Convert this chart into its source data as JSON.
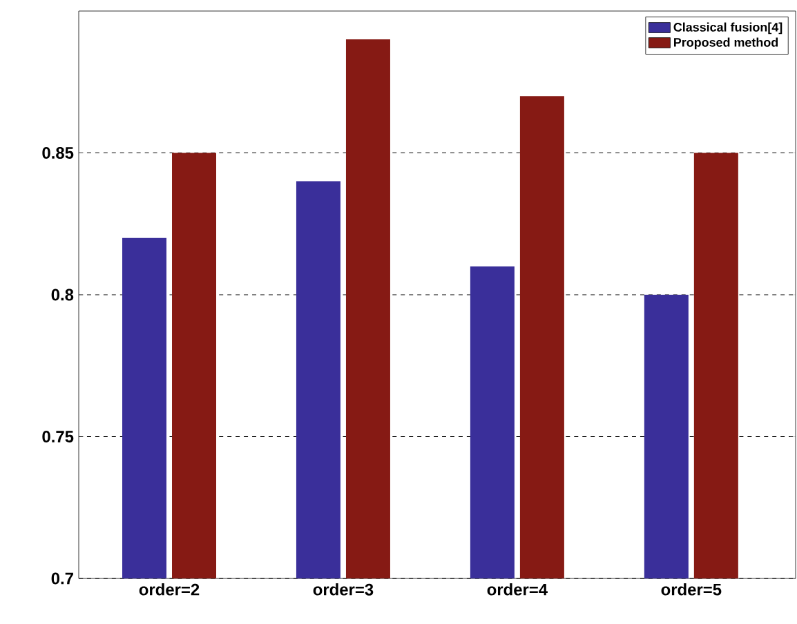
{
  "chart_data": {
    "type": "bar",
    "categories": [
      "order=2",
      "order=3",
      "order=4",
      "order=5"
    ],
    "series": [
      {
        "name": "Classical fusion[4]",
        "color": "#3a2f9a",
        "values": [
          0.82,
          0.84,
          0.81,
          0.8
        ]
      },
      {
        "name": "Proposed method",
        "color": "#861a14",
        "values": [
          0.85,
          0.89,
          0.87,
          0.85
        ]
      }
    ],
    "ylim": [
      0.7,
      0.9
    ],
    "yticks": [
      0.7,
      0.75,
      0.8,
      0.85
    ],
    "grid": "y",
    "legend": "top right"
  }
}
